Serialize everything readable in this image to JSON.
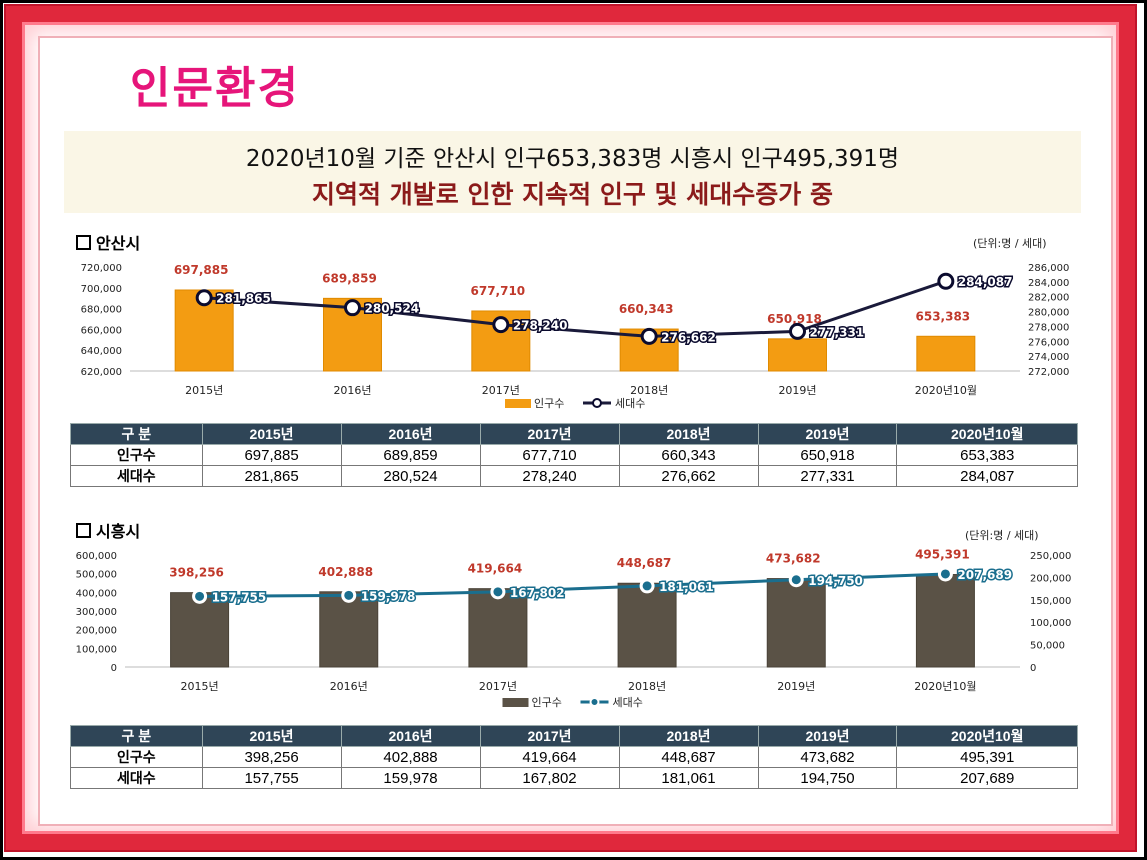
{
  "page": {
    "heading": "인문환경",
    "banner_line1": "2020년10월 기준 안산시 인구653,383명 시흥시 인구495,391명",
    "banner_line2": "지역적 개발로 인한 지속적 인구 및 세대수증가 중"
  },
  "colors": {
    "ansan_bar": "#f39c12",
    "ansan_line": "#1a1a3a",
    "siheung_bar": "#5a5246",
    "siheung_line": "#1a6e8e",
    "label_red": "#c0392b",
    "table_head": "#2f4557"
  },
  "sections": [
    {
      "title": "안산시",
      "unit": "(단위:명 / 세대)"
    },
    {
      "title": "시흥시",
      "unit": "(단위:명 / 세대)"
    }
  ],
  "legend": {
    "pop": "인구수",
    "hh": "세대수"
  },
  "chart_data": [
    {
      "type": "bar",
      "title": "안산시",
      "categories": [
        "2015년",
        "2016년",
        "2017년",
        "2018년",
        "2019년",
        "2020년10월"
      ],
      "ylim": [
        620000,
        720000
      ],
      "yticks": [
        "620,000",
        "640,000",
        "660,000",
        "680,000",
        "700,000",
        "720,000"
      ],
      "y2lim": [
        272000,
        286000
      ],
      "y2ticks": [
        "272,000",
        "274,000",
        "276,000",
        "278,000",
        "280,000",
        "282,000",
        "284,000",
        "286,000"
      ],
      "series": [
        {
          "name": "인구수",
          "kind": "bar",
          "values": [
            697885,
            689859,
            677710,
            660343,
            650918,
            653383
          ],
          "labels": [
            "697,885",
            "689,859",
            "677,710",
            "660,343",
            "650,918",
            "653,383"
          ]
        },
        {
          "name": "세대수",
          "kind": "line",
          "values": [
            281865,
            280524,
            278240,
            276662,
            277331,
            284087
          ],
          "labels": [
            "281,865",
            "280,524",
            "278,240",
            "276,662",
            "277,331",
            "284,087"
          ]
        }
      ]
    },
    {
      "type": "bar",
      "title": "시흥시",
      "categories": [
        "2015년",
        "2016년",
        "2017년",
        "2018년",
        "2019년",
        "2020년10월"
      ],
      "ylim": [
        0,
        600000
      ],
      "yticks": [
        "0",
        "100,000",
        "200,000",
        "300,000",
        "400,000",
        "500,000",
        "600,000"
      ],
      "y2lim": [
        0,
        250000
      ],
      "y2ticks": [
        "0",
        "50,000",
        "100,000",
        "150,000",
        "200,000",
        "250,000"
      ],
      "series": [
        {
          "name": "인구수",
          "kind": "bar",
          "values": [
            398256,
            402888,
            419664,
            448687,
            473682,
            495391
          ],
          "labels": [
            "398,256",
            "402,888",
            "419,664",
            "448,687",
            "473,682",
            "495,391"
          ]
        },
        {
          "name": "세대수",
          "kind": "line",
          "values": [
            157755,
            159978,
            167802,
            181061,
            194750,
            207689
          ],
          "labels": [
            "157,755",
            "159,978",
            "167,802",
            "181,061",
            "194,750",
            "207,689"
          ]
        }
      ]
    }
  ],
  "tables": [
    {
      "header": [
        "구 분",
        "2015년",
        "2016년",
        "2017년",
        "2018년",
        "2019년",
        "2020년10월"
      ],
      "rows": [
        [
          "인구수",
          "697,885",
          "689,859",
          "677,710",
          "660,343",
          "650,918",
          "653,383"
        ],
        [
          "세대수",
          "281,865",
          "280,524",
          "278,240",
          "276,662",
          "277,331",
          "284,087"
        ]
      ]
    },
    {
      "header": [
        "구 분",
        "2015년",
        "2016년",
        "2017년",
        "2018년",
        "2019년",
        "2020년10월"
      ],
      "rows": [
        [
          "인구수",
          "398,256",
          "402,888",
          "419,664",
          "448,687",
          "473,682",
          "495,391"
        ],
        [
          "세대수",
          "157,755",
          "159,978",
          "167,802",
          "181,061",
          "194,750",
          "207,689"
        ]
      ]
    }
  ]
}
